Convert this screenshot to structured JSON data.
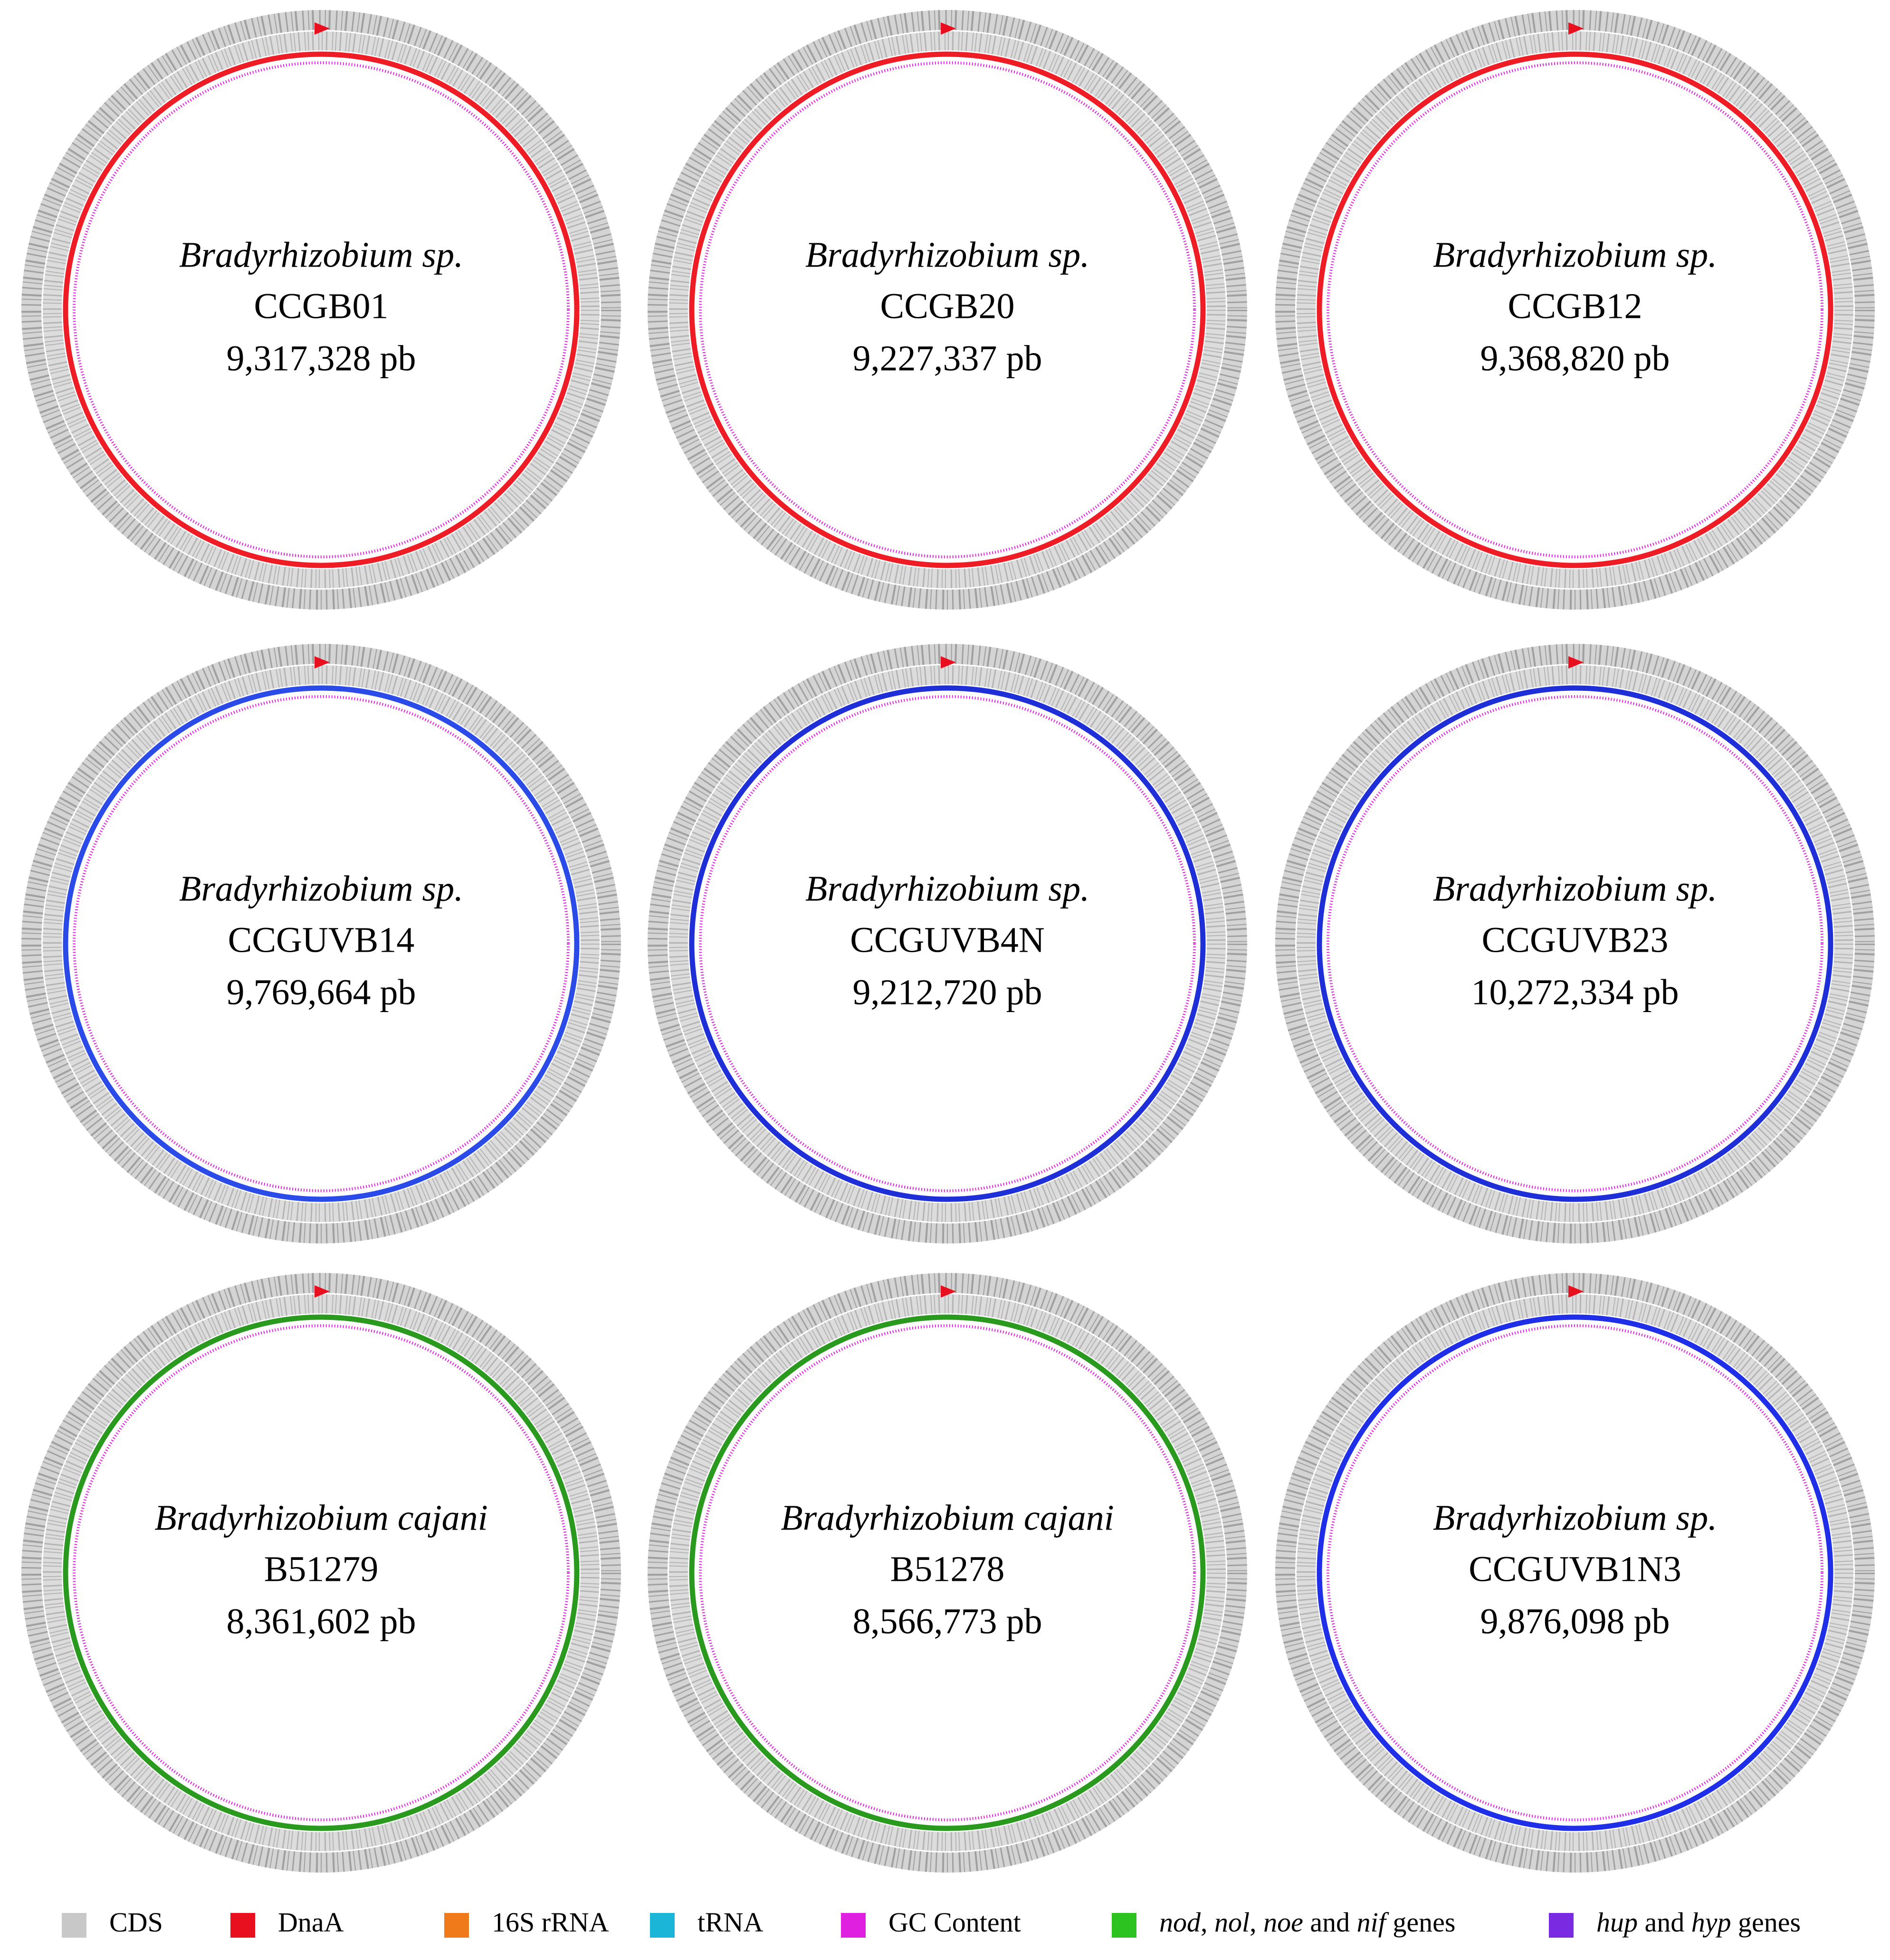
{
  "genomes": [
    {
      "species": "Bradyrhizobium sp.",
      "strain": "CCGB01",
      "size": "9,317,328 pb",
      "ring_color": "#ee1c24"
    },
    {
      "species": "Bradyrhizobium sp.",
      "strain": "CCGB20",
      "size": "9,227,337 pb",
      "ring_color": "#ee1c24"
    },
    {
      "species": "Bradyrhizobium sp.",
      "strain": "CCGB12",
      "size": "9,368,820 pb",
      "ring_color": "#ee1c24"
    },
    {
      "species": "Bradyrhizobium sp.",
      "strain": "CCGUVB14",
      "size": "9,769,664 pb",
      "ring_color": "#2a4be8"
    },
    {
      "species": "Bradyrhizobium sp.",
      "strain": "CCGUVB4N",
      "size": "9,212,720 pb",
      "ring_color": "#1f2fd8"
    },
    {
      "species": "Bradyrhizobium sp.",
      "strain": "CCGUVB23",
      "size": "10,272,334 pb",
      "ring_color": "#1f2fd8"
    },
    {
      "species": "Bradyrhizobium cajani",
      "strain": "B51279",
      "size": "8,361,602 pb",
      "ring_color": "#2a9a1f"
    },
    {
      "species": "Bradyrhizobium cajani",
      "strain": "B51278",
      "size": "8,566,773 pb",
      "ring_color": "#2a9a1f"
    },
    {
      "species": "Bradyrhizobium sp.",
      "strain": "CCGUVB1N3",
      "size": "9,876,098 pb",
      "ring_color": "#1f2fe8"
    }
  ],
  "legend": [
    {
      "parts": [
        {
          "text": "CDS",
          "italic": false
        }
      ],
      "color": "#c8c8c8"
    },
    {
      "parts": [
        {
          "text": "DnaA",
          "italic": false
        }
      ],
      "color": "#e8101e"
    },
    {
      "parts": [
        {
          "text": "16S rRNA",
          "italic": false
        }
      ],
      "color": "#f07a1a"
    },
    {
      "parts": [
        {
          "text": "tRNA",
          "italic": false
        }
      ],
      "color": "#1bb5d8"
    },
    {
      "parts": [
        {
          "text": "GC Content",
          "italic": false
        }
      ],
      "color": "#e020e0"
    },
    {
      "parts": [
        {
          "text": "nod",
          "italic": true
        },
        {
          "text": ", ",
          "italic": false
        },
        {
          "text": "nol",
          "italic": true
        },
        {
          "text": ", ",
          "italic": false
        },
        {
          "text": "noe",
          "italic": true
        },
        {
          "text": " and ",
          "italic": false
        },
        {
          "text": "nif",
          "italic": true
        },
        {
          "text": " genes",
          "italic": false
        }
      ],
      "color": "#2cc21f"
    },
    {
      "parts": [
        {
          "text": "hup",
          "italic": true
        },
        {
          "text": " and ",
          "italic": false
        },
        {
          "text": "hyp",
          "italic": true
        },
        {
          "text": " genes",
          "italic": false
        }
      ],
      "color": "#7a2ae0"
    }
  ]
}
